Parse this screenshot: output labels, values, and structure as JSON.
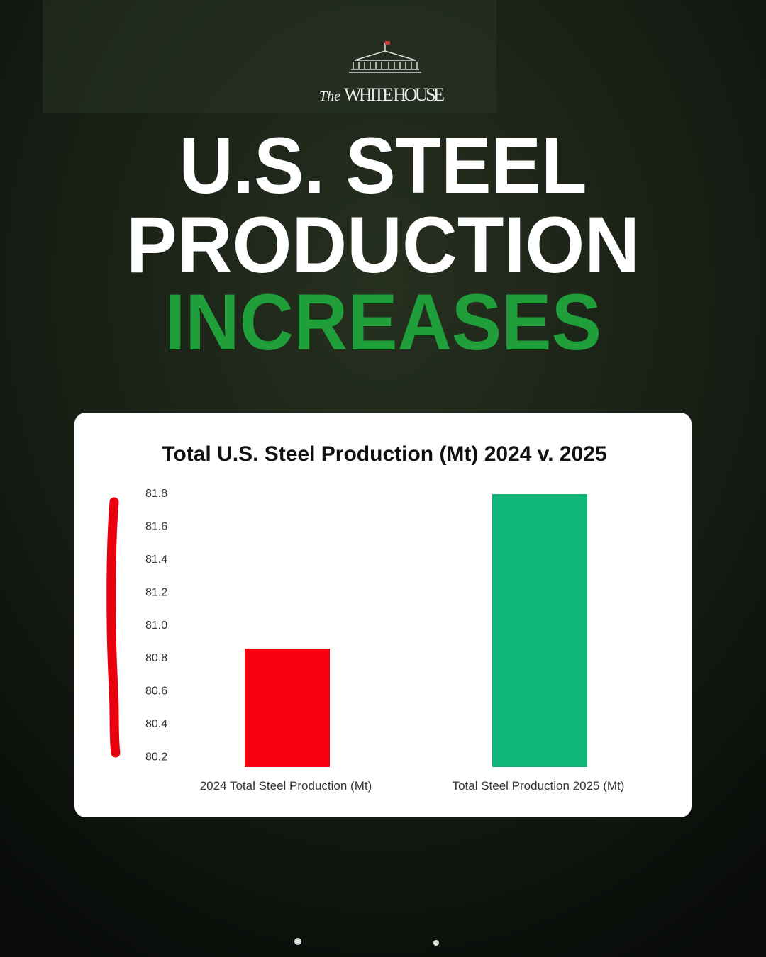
{
  "brand": {
    "prefix": "The",
    "name": "WHITE HOUSE"
  },
  "headline": [
    "U.S. STEEL",
    "PRODUCTION",
    "INCREASES"
  ],
  "chart_data": {
    "type": "bar",
    "title": "Total U.S. Steel Production (Mt) 2024 v. 2025",
    "categories": [
      "2024 Total Steel Production (Mt)",
      "Total Steel Production 2025 (Mt)"
    ],
    "values": [
      80.86,
      81.8
    ],
    "colors": [
      "#f8000f",
      "#10b57a"
    ],
    "ylim": [
      80.14,
      81.8
    ],
    "yticks": [
      80.2,
      80.4,
      80.6,
      80.8,
      {
        "value": 81,
        "label": "81.0"
      },
      81.2,
      81.4,
      81.6,
      81.8
    ],
    "grid": false
  }
}
